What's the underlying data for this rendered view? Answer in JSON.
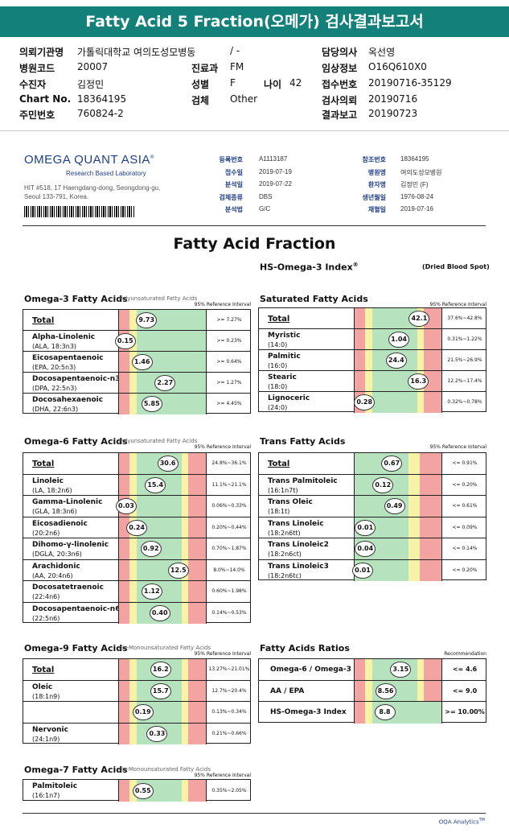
{
  "banner": "Fatty Acid 5 Fraction(오메가) 검사결과보고서",
  "hdr": {
    "l1k": "의뢰기관명",
    "l1v": "가톨릭대학교 여의도성모병동",
    "l1v2": "/ -",
    "r1k": "담당의사",
    "r1v": "옥선영",
    "l2k": "병원코드",
    "l2v": "20007",
    "m2k": "진료과",
    "m2v": "FM",
    "r2k": "임상정보",
    "r2v": "O16Q610X0",
    "l3k": "수진자",
    "l3v": "김정민",
    "m3k": "성별",
    "m3v": "F",
    "a3k": "나이",
    "a3v": "42",
    "r3k": "접수번호",
    "r3v": "20190716-35129",
    "l4k": "Chart No.",
    "l4v": "18364195",
    "m4k": "검체",
    "m4v": "Other",
    "r4k": "검사의뢰",
    "r4v": "20190716",
    "l5k": "주민번호",
    "l5v": "760824-2",
    "r5k": "결과보고",
    "r5v": "20190723"
  },
  "lab": {
    "logo": "OMEGA QUANT ASIA",
    "tag": "Research Based Laboratory",
    "reg": "®",
    "addr1": "HIT #518, 17 Haengdang-dong, Seongdong-gu,",
    "addr2": "Seoul 133-791, Korea."
  },
  "kv": [
    [
      "등록번호",
      "A1113187",
      "참조번호",
      "18364195"
    ],
    [
      "접수일",
      "2019-07-19",
      "병원명",
      "여의도성모병원"
    ],
    [
      "분석일",
      "2019-07-22",
      "환자명",
      "김정민 (F)"
    ],
    [
      "검체종류",
      "DBS",
      "생년월일",
      "1976-08-24"
    ],
    [
      "분석법",
      "G/C",
      "채혈일",
      "2019-07-16"
    ]
  ],
  "title": "Fatty Acid Fraction",
  "subtitle": "HS-Omega-3 Index",
  "subreg": "®",
  "dbs": "(Dried Blood Spot)",
  "ri": "95% Reference Interval",
  "rec": "Recommendation",
  "sections": {
    "o3": {
      "t": "Omega-3 Fatty Acids",
      "s": "Polyunsaturated Fatty Acids",
      "rows": [
        {
          "n": "Total",
          "b": "",
          "v": "9.73",
          "p": 0.32,
          "r": ">= 7.27%",
          "u": 1
        },
        {
          "n": "Alpha-Linolenic",
          "b": "(ALA, 18:3n3)",
          "v": "0.15",
          "p": 0.08,
          "r": ">= 0.23%"
        },
        {
          "n": "Eicosapentaenoic",
          "b": "(EPA, 20:5n3)",
          "v": "1.46",
          "p": 0.27,
          "r": ">= 0.64%"
        },
        {
          "n": "Docosapentaenoic-n3",
          "b": "(DPA, 22:5n3)",
          "v": "2.27",
          "p": 0.53,
          "r": ">= 1.27%"
        },
        {
          "n": "Docosahexaenoic",
          "b": "(DHA, 22:6n3)",
          "v": "5.85",
          "p": 0.38,
          "r": ">= 4.45%"
        }
      ]
    },
    "sat": {
      "t": "Saturated Fatty Acids",
      "s": "",
      "rows": [
        {
          "n": "Total",
          "b": "",
          "v": "42.1",
          "p": 0.74,
          "r": "37.6%~42.8%",
          "u": 1
        },
        {
          "n": "Myristic",
          "b": "(14:0)",
          "v": "1.04",
          "p": 0.51,
          "r": "0.31%~1.22%"
        },
        {
          "n": "Palmitic",
          "b": "(16:0)",
          "v": "24.4",
          "p": 0.48,
          "r": "21.5%~26.9%"
        },
        {
          "n": "Stearic",
          "b": "(18:0)",
          "v": "16.3",
          "p": 0.73,
          "r": "12.2%~17.4%"
        },
        {
          "n": "Lignoceric",
          "b": "(24:0)",
          "v": "0.28",
          "p": 0.12,
          "r": "0.32%~0.78%"
        }
      ]
    },
    "o6": {
      "t": "Omega-6 Fatty Acids",
      "s": "Polyunsaturated Fatty Acids",
      "rows": [
        {
          "n": "Total",
          "b": "",
          "v": "30.6",
          "p": 0.56,
          "r": "24.8%~36.1%",
          "u": 1
        },
        {
          "n": "Linoleic",
          "b": "(LA, 18:2n6)",
          "v": "15.4",
          "p": 0.42,
          "r": "11.1%~21.1%"
        },
        {
          "n": "Gamma-Linolenic",
          "b": "(GLA, 18:3n6)",
          "v": "0.03",
          "p": 0.09,
          "r": "0.06%~0.33%"
        },
        {
          "n": "Eicosadienoic",
          "b": "(20:2n6)",
          "v": "0.24",
          "p": 0.21,
          "r": "0.20%~0.44%"
        },
        {
          "n": "Dihomo-γ-linolenic",
          "b": "(DGLA, 20:3n6)",
          "v": "0.92",
          "p": 0.37,
          "r": "0.70%~1.87%"
        },
        {
          "n": "Arachidonic",
          "b": "(AA, 20:4n6)",
          "v": "12.5",
          "p": 0.68,
          "r": "8.0%~14.0%"
        },
        {
          "n": "Docosatetraenoic",
          "b": "(22:4n6)",
          "v": "1.12",
          "p": 0.38,
          "r": "0.60%~1.98%"
        },
        {
          "n": "Docosapentaenoic-n6",
          "b": "(22:5n6)",
          "v": "0.40",
          "p": 0.47,
          "r": "0.14%~0.53%"
        }
      ]
    },
    "trans": {
      "t": "Trans Fatty Acids",
      "s": "",
      "rows": [
        {
          "n": "Total",
          "b": "",
          "v": "0.67",
          "p": 0.43,
          "r": "<= 0.91%",
          "u": 1
        },
        {
          "n": "Trans Palmitoleic",
          "b": "(16:1n7t)",
          "v": "0.12",
          "p": 0.33,
          "r": "<= 0.20%"
        },
        {
          "n": "Trans Oleic",
          "b": "(18:1t)",
          "v": "0.49",
          "p": 0.46,
          "r": "<= 0.61%"
        },
        {
          "n": "Trans Linoleic",
          "b": "(18:2n6tt)",
          "v": "0.01",
          "p": 0.13,
          "r": "<= 0.09%"
        },
        {
          "n": "Trans Linoleic2",
          "b": "(18:2n6ct)",
          "v": "0.04",
          "p": 0.13,
          "r": "<= 0.14%"
        },
        {
          "n": "Trans Linoleic3",
          "b": "(18:2n6tc)",
          "v": "0.01",
          "p": 0.1,
          "r": "<= 0.20%"
        }
      ]
    },
    "o9": {
      "t": "Omega-9 Fatty Acids",
      "s": "cis-Monounsaturated Fatty Acids",
      "rows": [
        {
          "n": "Total",
          "b": "",
          "v": "16.2",
          "p": 0.48,
          "r": "13.27%~21.01%",
          "u": 1
        },
        {
          "n": "Oleic",
          "b": "(18:1n9)",
          "v": "15.7",
          "p": 0.48,
          "r": "12.7%~20.4%"
        },
        {
          "n": "",
          "b": "",
          "v": "0.19",
          "p": 0.28,
          "r": "0.13%~0.34%"
        },
        {
          "n": "Nervonic",
          "b": "(24:1n9)",
          "v": "0.33",
          "p": 0.44,
          "r": "0.21%~0.66%"
        }
      ]
    },
    "ratio": {
      "t": "Fatty Acids Ratios",
      "s": "",
      "rows": [
        {
          "n": "Omega-6 / Omega-3",
          "b": "",
          "v": "3.15",
          "p": 0.53,
          "r": "<= 4.6",
          "big": 1
        },
        {
          "n": "AA / EPA",
          "b": "",
          "v": "8.56",
          "p": 0.36,
          "r": "<= 9.0",
          "big": 1
        },
        {
          "n": "HS-Omega-3 Index",
          "b": "",
          "v": "8.8",
          "p": 0.35,
          "r": ">= 10.00%",
          "big": 1
        }
      ]
    },
    "o7": {
      "t": "Omega-7 Fatty Acids",
      "s": "cis-Monounsaturated Fatty Acids",
      "rows": [
        {
          "n": "Palmitoleic",
          "b": "(16:1n7)",
          "v": "0.55",
          "p": 0.28,
          "r": "0.35%~2.05%"
        }
      ]
    }
  },
  "footer": "OQA Analytics",
  "footer_tm": "TM",
  "colors": {
    "red": "#f4a3a3",
    "yellow": "#f7f3a6",
    "green": "#b6e3be",
    "teal": "#13807a"
  }
}
